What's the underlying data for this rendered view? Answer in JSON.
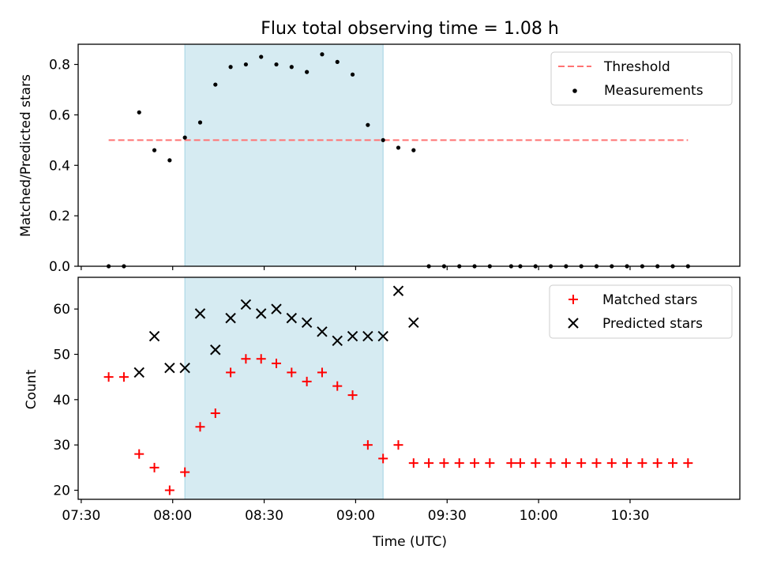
{
  "figure": {
    "title": "Flux total observing time = 1.08 h",
    "xlabel": "Time (UTC)"
  },
  "colors": {
    "shade": "#add8e6",
    "threshold": "#ff7373",
    "measurement": "#000000",
    "matched": "#ff0000",
    "predicted": "#000000"
  },
  "chart_data": [
    {
      "type": "scatter",
      "ylabel": "Matched/Predicted stars",
      "xlim": [
        "07:29",
        "11:06"
      ],
      "ylim": [
        0,
        0.88
      ],
      "yticks": [
        "0.0",
        "0.2",
        "0.4",
        "0.6",
        "0.8"
      ],
      "yticks_values": [
        0,
        0.2,
        0.4,
        0.6,
        0.8
      ],
      "shaded_interval": [
        "08:04",
        "09:09"
      ],
      "legend": {
        "position": "top-right",
        "entries": [
          "Threshold",
          "Measurements"
        ]
      },
      "series": [
        {
          "name": "Threshold",
          "style": "dashed-line",
          "x": [
            "07:39",
            "10:49"
          ],
          "y": [
            0.5,
            0.5
          ]
        },
        {
          "name": "Measurements",
          "style": "dot",
          "x": [
            "07:39",
            "07:44",
            "07:49",
            "07:54",
            "07:59",
            "08:04",
            "08:09",
            "08:14",
            "08:19",
            "08:24",
            "08:29",
            "08:34",
            "08:39",
            "08:44",
            "08:49",
            "08:54",
            "08:59",
            "09:04",
            "09:09",
            "09:14",
            "09:19",
            "09:24",
            "09:29",
            "09:34",
            "09:39",
            "09:44",
            "09:51",
            "09:54",
            "09:59",
            "10:04",
            "10:09",
            "10:14",
            "10:19",
            "10:24",
            "10:29",
            "10:34",
            "10:39",
            "10:44",
            "10:49"
          ],
          "y": [
            0.0,
            0.0,
            0.61,
            0.46,
            0.42,
            0.51,
            0.57,
            0.72,
            0.79,
            0.8,
            0.83,
            0.8,
            0.79,
            0.77,
            0.84,
            0.81,
            0.76,
            0.56,
            0.5,
            0.47,
            0.46,
            0.0,
            0.0,
            0.0,
            0.0,
            0.0,
            0.0,
            0.0,
            0.0,
            0.0,
            0.0,
            0.0,
            0.0,
            0.0,
            0.0,
            0.0,
            0.0,
            0.0,
            0.0
          ]
        }
      ]
    },
    {
      "type": "scatter",
      "ylabel": "Count",
      "xlim": [
        "07:29",
        "11:06"
      ],
      "ylim": [
        18,
        67
      ],
      "yticks": [
        "20",
        "30",
        "40",
        "50",
        "60"
      ],
      "yticks_values": [
        20,
        30,
        40,
        50,
        60
      ],
      "xticks": [
        "07:30",
        "08:00",
        "08:30",
        "09:00",
        "09:30",
        "10:00",
        "10:30"
      ],
      "shaded_interval": [
        "08:04",
        "09:09"
      ],
      "legend": {
        "position": "top-right",
        "entries": [
          "Matched stars",
          "Predicted stars"
        ]
      },
      "series": [
        {
          "name": "Matched stars",
          "style": "plus",
          "x": [
            "07:39",
            "07:44",
            "07:49",
            "07:54",
            "07:59",
            "08:04",
            "08:09",
            "08:14",
            "08:19",
            "08:24",
            "08:29",
            "08:34",
            "08:39",
            "08:44",
            "08:49",
            "08:54",
            "08:59",
            "09:04",
            "09:09",
            "09:14",
            "09:19",
            "09:24",
            "09:29",
            "09:34",
            "09:39",
            "09:44",
            "09:51",
            "09:54",
            "09:59",
            "10:04",
            "10:09",
            "10:14",
            "10:19",
            "10:24",
            "10:29",
            "10:34",
            "10:39",
            "10:44",
            "10:49"
          ],
          "y": [
            45,
            45,
            28,
            25,
            20,
            24,
            34,
            37,
            46,
            49,
            49,
            48,
            46,
            44,
            46,
            43,
            41,
            30,
            27,
            30,
            26,
            26,
            26,
            26,
            26,
            26,
            26,
            26,
            26,
            26,
            26,
            26,
            26,
            26,
            26,
            26,
            26,
            26,
            26
          ]
        },
        {
          "name": "Predicted stars",
          "style": "x",
          "x": [
            "07:49",
            "07:54",
            "07:59",
            "08:04",
            "08:09",
            "08:14",
            "08:19",
            "08:24",
            "08:29",
            "08:34",
            "08:39",
            "08:44",
            "08:49",
            "08:54",
            "08:59",
            "09:04",
            "09:09",
            "09:14",
            "09:19"
          ],
          "y": [
            46,
            54,
            47,
            47,
            59,
            51,
            58,
            61,
            59,
            60,
            58,
            57,
            55,
            53,
            54,
            54,
            54,
            64,
            57
          ]
        }
      ]
    }
  ]
}
